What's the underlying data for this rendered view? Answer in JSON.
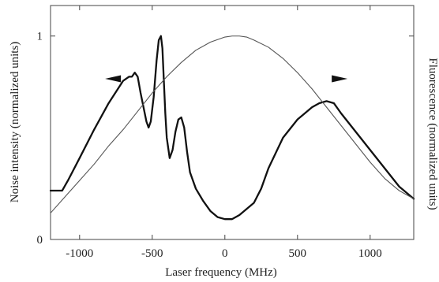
{
  "chart_data": {
    "type": "line",
    "xlabel": "Laser frequency (MHz)",
    "ylabel_left": "Noise intensity (normalized units)",
    "ylabel_right": "Fluorescence (normalized units)",
    "xlim": [
      -1200,
      1300
    ],
    "ylim": [
      0,
      1.15
    ],
    "x_ticks": [
      {
        "value": -1000,
        "label": "-1000"
      },
      {
        "value": -500,
        "label": "-500"
      },
      {
        "value": 0,
        "label": "0"
      },
      {
        "value": 500,
        "label": "500"
      },
      {
        "value": 1000,
        "label": "1000"
      }
    ],
    "y_ticks": [
      {
        "value": 0,
        "label": "0"
      },
      {
        "value": 1,
        "label": "1"
      }
    ],
    "grid": false,
    "legend": "none",
    "annotations": [
      {
        "type": "arrow",
        "direction": "left",
        "x": -770,
        "y": 0.79,
        "meaning": "noise curve uses left axis"
      },
      {
        "type": "arrow",
        "direction": "right",
        "x": 790,
        "y": 0.79,
        "meaning": "fluorescence curve uses right axis"
      }
    ],
    "series": [
      {
        "axis": "left",
        "color": "#111111",
        "style": "thick",
        "x": [
          -1200,
          -1150,
          -1120,
          -1080,
          -1000,
          -900,
          -800,
          -700,
          -660,
          -640,
          -620,
          -600,
          -580,
          -560,
          -540,
          -525,
          -510,
          -490,
          -470,
          -455,
          -440,
          -430,
          -420,
          -410,
          -400,
          -380,
          -360,
          -340,
          -320,
          -300,
          -280,
          -260,
          -240,
          -200,
          -150,
          -100,
          -50,
          0,
          50,
          100,
          150,
          200,
          250,
          300,
          400,
          500,
          600,
          650,
          700,
          750,
          800,
          900,
          1000,
          1100,
          1200,
          1300
        ],
        "y": [
          0.24,
          0.24,
          0.24,
          0.29,
          0.4,
          0.54,
          0.67,
          0.78,
          0.8,
          0.8,
          0.82,
          0.8,
          0.72,
          0.65,
          0.58,
          0.55,
          0.58,
          0.7,
          0.88,
          0.98,
          1.0,
          0.94,
          0.78,
          0.62,
          0.5,
          0.4,
          0.44,
          0.53,
          0.59,
          0.6,
          0.55,
          0.43,
          0.33,
          0.25,
          0.19,
          0.14,
          0.11,
          0.1,
          0.1,
          0.12,
          0.15,
          0.18,
          0.25,
          0.35,
          0.5,
          0.59,
          0.65,
          0.67,
          0.68,
          0.67,
          0.62,
          0.53,
          0.44,
          0.35,
          0.26,
          0.2
        ]
      },
      {
        "axis": "right",
        "color": "#555555",
        "style": "thin",
        "x": [
          -1200,
          -1100,
          -1000,
          -900,
          -800,
          -700,
          -600,
          -500,
          -400,
          -300,
          -200,
          -100,
          0,
          50,
          100,
          150,
          200,
          300,
          400,
          500,
          600,
          700,
          800,
          900,
          1000,
          1100,
          1200,
          1300
        ],
        "y": [
          0.13,
          0.21,
          0.29,
          0.37,
          0.46,
          0.54,
          0.63,
          0.72,
          0.8,
          0.87,
          0.93,
          0.97,
          0.995,
          1.0,
          1.0,
          0.995,
          0.98,
          0.945,
          0.89,
          0.82,
          0.74,
          0.65,
          0.56,
          0.47,
          0.38,
          0.3,
          0.24,
          0.2
        ]
      }
    ]
  }
}
